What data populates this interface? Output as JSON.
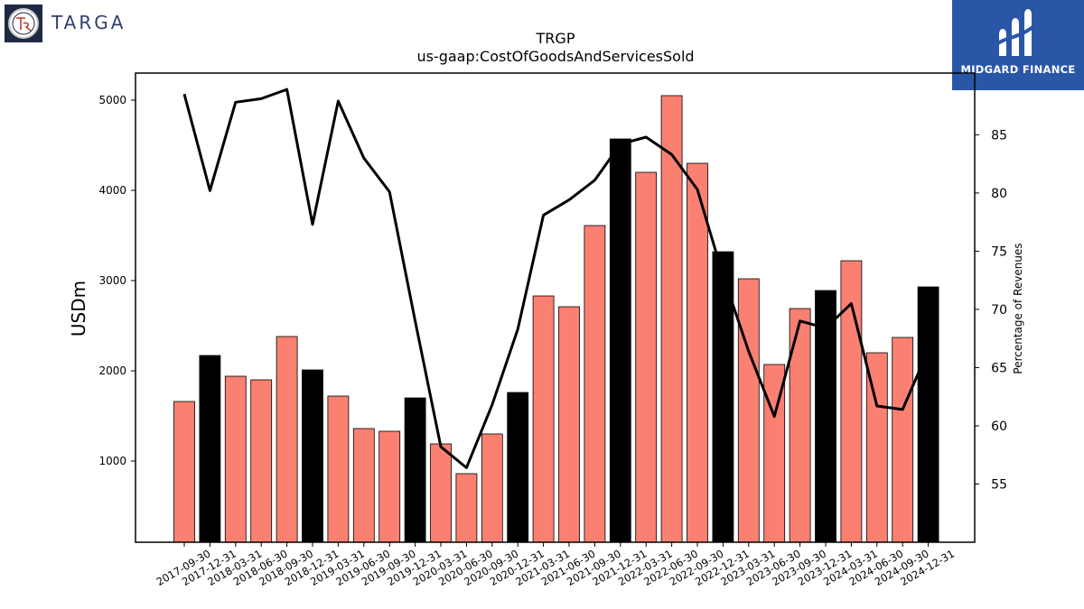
{
  "logos": {
    "left_brand": "TARGA",
    "left_icon": "targa-tr-emblem-icon",
    "right_brand": "MIDGARD FINANCE",
    "right_icon": "midgard-m-emblem-icon",
    "right_bg_color": "#2a56a8"
  },
  "chart_data": {
    "type": "bar",
    "title": "TRGP",
    "subtitle": "us-gaap:CostOfGoodsAndServicesSold",
    "ylabel": "USDm",
    "y2label": "Percentage of Revenues",
    "ylim": [
      100,
      5300
    ],
    "y2lim": [
      50,
      90.3
    ],
    "yticks": [
      1000,
      2000,
      3000,
      4000,
      5000
    ],
    "y2ticks": [
      55,
      60,
      65,
      70,
      75,
      80,
      85
    ],
    "categories": [
      "2017-09-30",
      "2017-12-31",
      "2018-03-31",
      "2018-06-30",
      "2018-09-30",
      "2018-12-31",
      "2019-03-31",
      "2019-06-30",
      "2019-09-30",
      "2019-12-31",
      "2020-03-31",
      "2020-06-30",
      "2020-09-30",
      "2020-12-31",
      "2021-03-31",
      "2021-06-30",
      "2021-09-30",
      "2021-12-31",
      "2022-03-31",
      "2022-06-30",
      "2022-09-30",
      "2022-12-31",
      "2023-03-31",
      "2023-06-30",
      "2023-09-30",
      "2023-12-31",
      "2024-03-31",
      "2024-06-30",
      "2024-09-30",
      "2024-12-31"
    ],
    "values": [
      1660,
      2170,
      1940,
      1900,
      2380,
      2010,
      1720,
      1360,
      1330,
      1700,
      1190,
      860,
      1300,
      1760,
      2830,
      2710,
      3610,
      4570,
      4200,
      5050,
      4300,
      3320,
      3020,
      2070,
      2690,
      2890,
      3220,
      2200,
      2370,
      2930
    ],
    "q4_highlight": [
      false,
      true,
      false,
      false,
      false,
      true,
      false,
      false,
      false,
      true,
      false,
      false,
      false,
      true,
      false,
      false,
      false,
      true,
      false,
      false,
      false,
      true,
      false,
      false,
      false,
      true,
      false,
      false,
      false,
      true
    ],
    "bar_color": "#fa8072",
    "q4_bar_color": "#000000",
    "line_series": {
      "values": [
        88.5,
        80.2,
        87.8,
        88.1,
        88.9,
        77.3,
        87.9,
        83.0,
        80.1,
        69.0,
        58.2,
        56.4,
        61.8,
        68.3,
        78.1,
        79.4,
        81.1,
        84.2,
        84.8,
        83.3,
        80.3,
        72.9,
        66.4,
        60.8,
        69.0,
        68.4,
        70.5,
        61.7,
        61.4,
        66.5
      ],
      "color": "#000000"
    },
    "grid": false,
    "legend": "none"
  }
}
